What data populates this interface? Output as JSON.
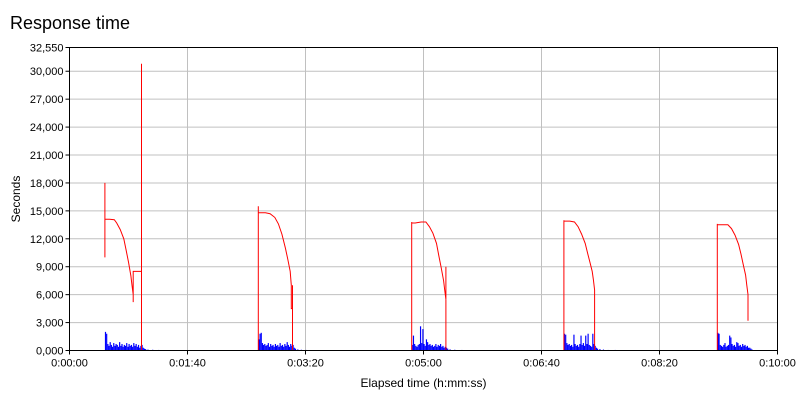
{
  "title": "Response time",
  "chart_data": {
    "type": "line",
    "title": "Response time",
    "xlabel": "Elapsed time (h:mm:ss)",
    "ylabel": "Seconds",
    "xlim": [
      0,
      600
    ],
    "ylim": [
      0,
      32550
    ],
    "grid": true,
    "x_ticks": [
      {
        "value": 0,
        "label": "0:00:00"
      },
      {
        "value": 100,
        "label": "0:01:40"
      },
      {
        "value": 200,
        "label": "0:03:20"
      },
      {
        "value": 300,
        "label": "0:05:00"
      },
      {
        "value": 400,
        "label": "0:06:40"
      },
      {
        "value": 500,
        "label": "0:08:20"
      },
      {
        "value": 600,
        "label": "0:10:00"
      }
    ],
    "y_ticks": [
      {
        "value": 0,
        "label": "0,000"
      },
      {
        "value": 3000,
        "label": "3,000"
      },
      {
        "value": 6000,
        "label": "6,000"
      },
      {
        "value": 9000,
        "label": "9,000"
      },
      {
        "value": 12000,
        "label": "12,000"
      },
      {
        "value": 15000,
        "label": "15,000"
      },
      {
        "value": 18000,
        "label": "18,000"
      },
      {
        "value": 21000,
        "label": "21,000"
      },
      {
        "value": 24000,
        "label": "24,000"
      },
      {
        "value": 27000,
        "label": "27,000"
      },
      {
        "value": 30000,
        "label": "30,000"
      },
      {
        "value": 32550,
        "label": "32,550"
      }
    ],
    "series": [
      {
        "color": "#ff0000",
        "kind": "line",
        "points": [
          [
            30,
            10000
          ],
          [
            30,
            18000
          ],
          [
            30,
            14100
          ],
          [
            34,
            14100
          ],
          [
            38,
            14050
          ],
          [
            40,
            13700
          ],
          [
            43,
            13000
          ],
          [
            46,
            12000
          ],
          [
            48,
            10800
          ],
          [
            50,
            9500
          ],
          [
            52,
            8000
          ],
          [
            53,
            7000
          ],
          [
            54,
            6000
          ],
          [
            54,
            5200
          ],
          [
            54,
            8500
          ],
          [
            61,
            8500
          ],
          [
            61,
            30800
          ],
          [
            61,
            0
          ],
          [
            160,
            0
          ],
          [
            160,
            15500
          ],
          [
            160,
            14800
          ],
          [
            166,
            14800
          ],
          [
            170,
            14700
          ],
          [
            174,
            14300
          ],
          [
            177,
            13600
          ],
          [
            180,
            12500
          ],
          [
            183,
            11000
          ],
          [
            185,
            9800
          ],
          [
            187,
            8500
          ],
          [
            188,
            7000
          ],
          [
            188,
            4500
          ],
          [
            189,
            4500
          ],
          [
            189,
            7000
          ],
          [
            189,
            0
          ],
          [
            290,
            0
          ],
          [
            290,
            13800
          ],
          [
            290,
            13700
          ],
          [
            293,
            13700
          ],
          [
            298,
            13800
          ],
          [
            302,
            13800
          ],
          [
            305,
            13300
          ],
          [
            308,
            12600
          ],
          [
            311,
            11500
          ],
          [
            313,
            10200
          ],
          [
            315,
            8900
          ],
          [
            317,
            7500
          ],
          [
            318,
            6500
          ],
          [
            319,
            5500
          ],
          [
            319,
            9000
          ],
          [
            319,
            0
          ],
          [
            419,
            0
          ],
          [
            419,
            14000
          ],
          [
            419,
            13900
          ],
          [
            424,
            13900
          ],
          [
            428,
            13800
          ],
          [
            431,
            13300
          ],
          [
            434,
            12500
          ],
          [
            437,
            11500
          ],
          [
            439,
            10500
          ],
          [
            441,
            9500
          ],
          [
            443,
            8500
          ],
          [
            444,
            7600
          ],
          [
            445,
            6500
          ],
          [
            445,
            4000
          ],
          [
            445,
            0
          ],
          [
            549,
            0
          ],
          [
            549,
            13600
          ],
          [
            549,
            13500
          ],
          [
            554,
            13500
          ],
          [
            558,
            13500
          ],
          [
            561,
            13100
          ],
          [
            564,
            12400
          ],
          [
            567,
            11400
          ],
          [
            569,
            10400
          ],
          [
            571,
            9200
          ],
          [
            573,
            8100
          ],
          [
            574,
            7000
          ],
          [
            575,
            6000
          ],
          [
            575,
            3200
          ]
        ]
      },
      {
        "color": "#0000ff",
        "kind": "bars",
        "bins": [
          [
            30,
            2000
          ],
          [
            31,
            1800
          ],
          [
            32,
            700
          ],
          [
            33,
            500
          ],
          [
            34,
            900
          ],
          [
            35,
            600
          ],
          [
            36,
            400
          ],
          [
            37,
            800
          ],
          [
            38,
            500
          ],
          [
            39,
            700
          ],
          [
            40,
            600
          ],
          [
            41,
            400
          ],
          [
            42,
            900
          ],
          [
            43,
            500
          ],
          [
            44,
            700
          ],
          [
            45,
            400
          ],
          [
            46,
            600
          ],
          [
            47,
            500
          ],
          [
            48,
            800
          ],
          [
            49,
            400
          ],
          [
            50,
            700
          ],
          [
            51,
            500
          ],
          [
            52,
            600
          ],
          [
            53,
            400
          ],
          [
            54,
            800
          ],
          [
            55,
            500
          ],
          [
            56,
            700
          ],
          [
            57,
            400
          ],
          [
            58,
            600
          ],
          [
            59,
            300
          ],
          [
            60,
            500
          ],
          [
            61,
            600
          ],
          [
            62,
            300
          ],
          [
            63,
            200
          ],
          [
            64,
            150
          ],
          [
            66,
            100
          ],
          [
            70,
            80
          ],
          [
            75,
            60
          ],
          [
            160,
            1200
          ],
          [
            161,
            1800
          ],
          [
            162,
            1900
          ],
          [
            163,
            800
          ],
          [
            164,
            600
          ],
          [
            165,
            700
          ],
          [
            166,
            500
          ],
          [
            167,
            600
          ],
          [
            168,
            800
          ],
          [
            169,
            400
          ],
          [
            170,
            700
          ],
          [
            171,
            500
          ],
          [
            172,
            600
          ],
          [
            173,
            400
          ],
          [
            174,
            700
          ],
          [
            175,
            500
          ],
          [
            176,
            600
          ],
          [
            177,
            400
          ],
          [
            178,
            800
          ],
          [
            179,
            500
          ],
          [
            180,
            600
          ],
          [
            181,
            400
          ],
          [
            182,
            700
          ],
          [
            183,
            500
          ],
          [
            184,
            900
          ],
          [
            185,
            600
          ],
          [
            186,
            400
          ],
          [
            187,
            700
          ],
          [
            188,
            500
          ],
          [
            189,
            600
          ],
          [
            190,
            300
          ],
          [
            191,
            200
          ],
          [
            193,
            120
          ],
          [
            196,
            80
          ],
          [
            200,
            60
          ],
          [
            290,
            600
          ],
          [
            291,
            1600
          ],
          [
            292,
            700
          ],
          [
            293,
            500
          ],
          [
            294,
            400
          ],
          [
            295,
            600
          ],
          [
            296,
            700
          ],
          [
            297,
            2600
          ],
          [
            298,
            800
          ],
          [
            299,
            2300
          ],
          [
            300,
            700
          ],
          [
            301,
            500
          ],
          [
            302,
            1200
          ],
          [
            303,
            900
          ],
          [
            304,
            600
          ],
          [
            305,
            700
          ],
          [
            306,
            500
          ],
          [
            307,
            600
          ],
          [
            308,
            400
          ],
          [
            309,
            500
          ],
          [
            310,
            700
          ],
          [
            311,
            400
          ],
          [
            312,
            600
          ],
          [
            313,
            500
          ],
          [
            314,
            700
          ],
          [
            315,
            400
          ],
          [
            316,
            500
          ],
          [
            317,
            300
          ],
          [
            318,
            400
          ],
          [
            319,
            300
          ],
          [
            320,
            200
          ],
          [
            322,
            120
          ],
          [
            326,
            80
          ],
          [
            332,
            60
          ],
          [
            419,
            1800
          ],
          [
            420,
            1700
          ],
          [
            421,
            800
          ],
          [
            422,
            600
          ],
          [
            423,
            700
          ],
          [
            424,
            500
          ],
          [
            425,
            600
          ],
          [
            426,
            400
          ],
          [
            427,
            1700
          ],
          [
            428,
            700
          ],
          [
            429,
            500
          ],
          [
            430,
            600
          ],
          [
            431,
            400
          ],
          [
            432,
            700
          ],
          [
            433,
            1600
          ],
          [
            434,
            600
          ],
          [
            435,
            800
          ],
          [
            436,
            500
          ],
          [
            437,
            1600
          ],
          [
            438,
            700
          ],
          [
            439,
            1800
          ],
          [
            440,
            600
          ],
          [
            441,
            500
          ],
          [
            442,
            400
          ],
          [
            443,
            1800
          ],
          [
            444,
            700
          ],
          [
            445,
            500
          ],
          [
            446,
            300
          ],
          [
            447,
            200
          ],
          [
            449,
            150
          ],
          [
            452,
            100
          ],
          [
            456,
            60
          ],
          [
            462,
            60
          ],
          [
            549,
            1900
          ],
          [
            550,
            1800
          ],
          [
            551,
            600
          ],
          [
            552,
            500
          ],
          [
            553,
            400
          ],
          [
            554,
            600
          ],
          [
            555,
            800
          ],
          [
            556,
            400
          ],
          [
            557,
            500
          ],
          [
            558,
            600
          ],
          [
            559,
            1600
          ],
          [
            560,
            1400
          ],
          [
            561,
            700
          ],
          [
            562,
            500
          ],
          [
            563,
            600
          ],
          [
            564,
            400
          ],
          [
            565,
            900
          ],
          [
            566,
            800
          ],
          [
            567,
            500
          ],
          [
            568,
            600
          ],
          [
            569,
            400
          ],
          [
            570,
            700
          ],
          [
            571,
            500
          ],
          [
            572,
            600
          ],
          [
            573,
            400
          ],
          [
            574,
            500
          ],
          [
            575,
            300
          ],
          [
            576,
            300
          ],
          [
            577,
            200
          ],
          [
            578,
            100
          ]
        ]
      }
    ]
  },
  "colors": {
    "grid": "#c0c0c0",
    "axis": "#000000"
  }
}
